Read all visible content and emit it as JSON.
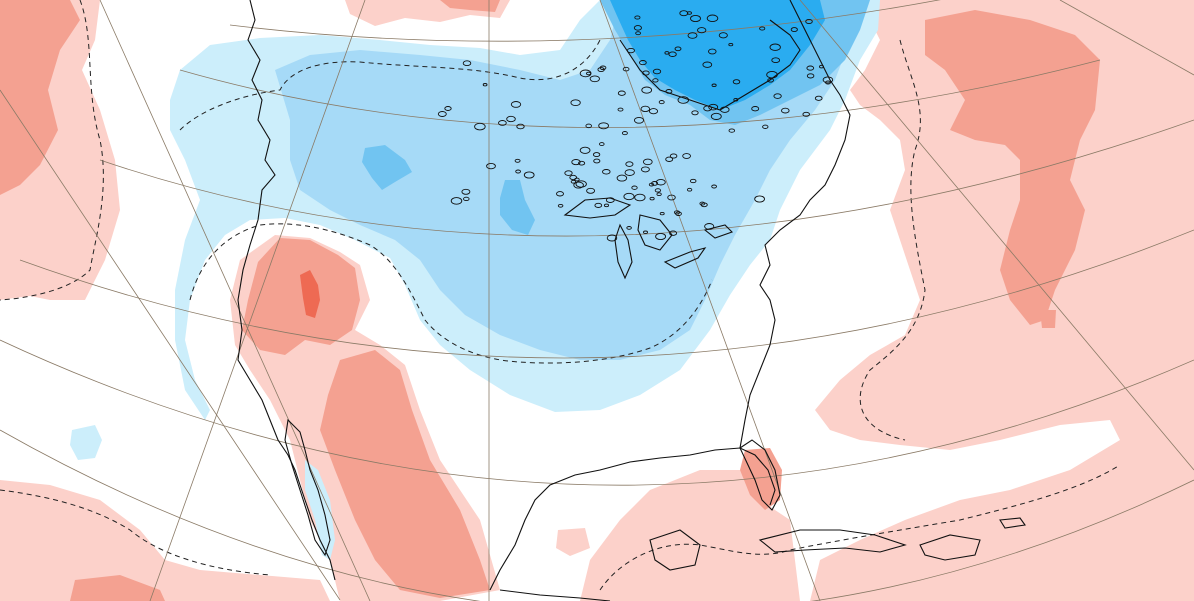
{
  "map": {
    "projection": "polar-stereographic",
    "region": "North America",
    "field": "anomaly",
    "colors": {
      "warm_light": "#fcd1ca",
      "warm_medium": "#f4a191",
      "warm_strong": "#ee6a53",
      "cold_light": "#cceefb",
      "cold_medium": "#a6daf7",
      "cold_strong": "#71c4f1",
      "cold_deep": "#2aacf0",
      "coastline": "#111111",
      "graticule": "#8a7a66",
      "contour": "#222222",
      "background": "#ffffff"
    },
    "legend": [],
    "title": ""
  }
}
